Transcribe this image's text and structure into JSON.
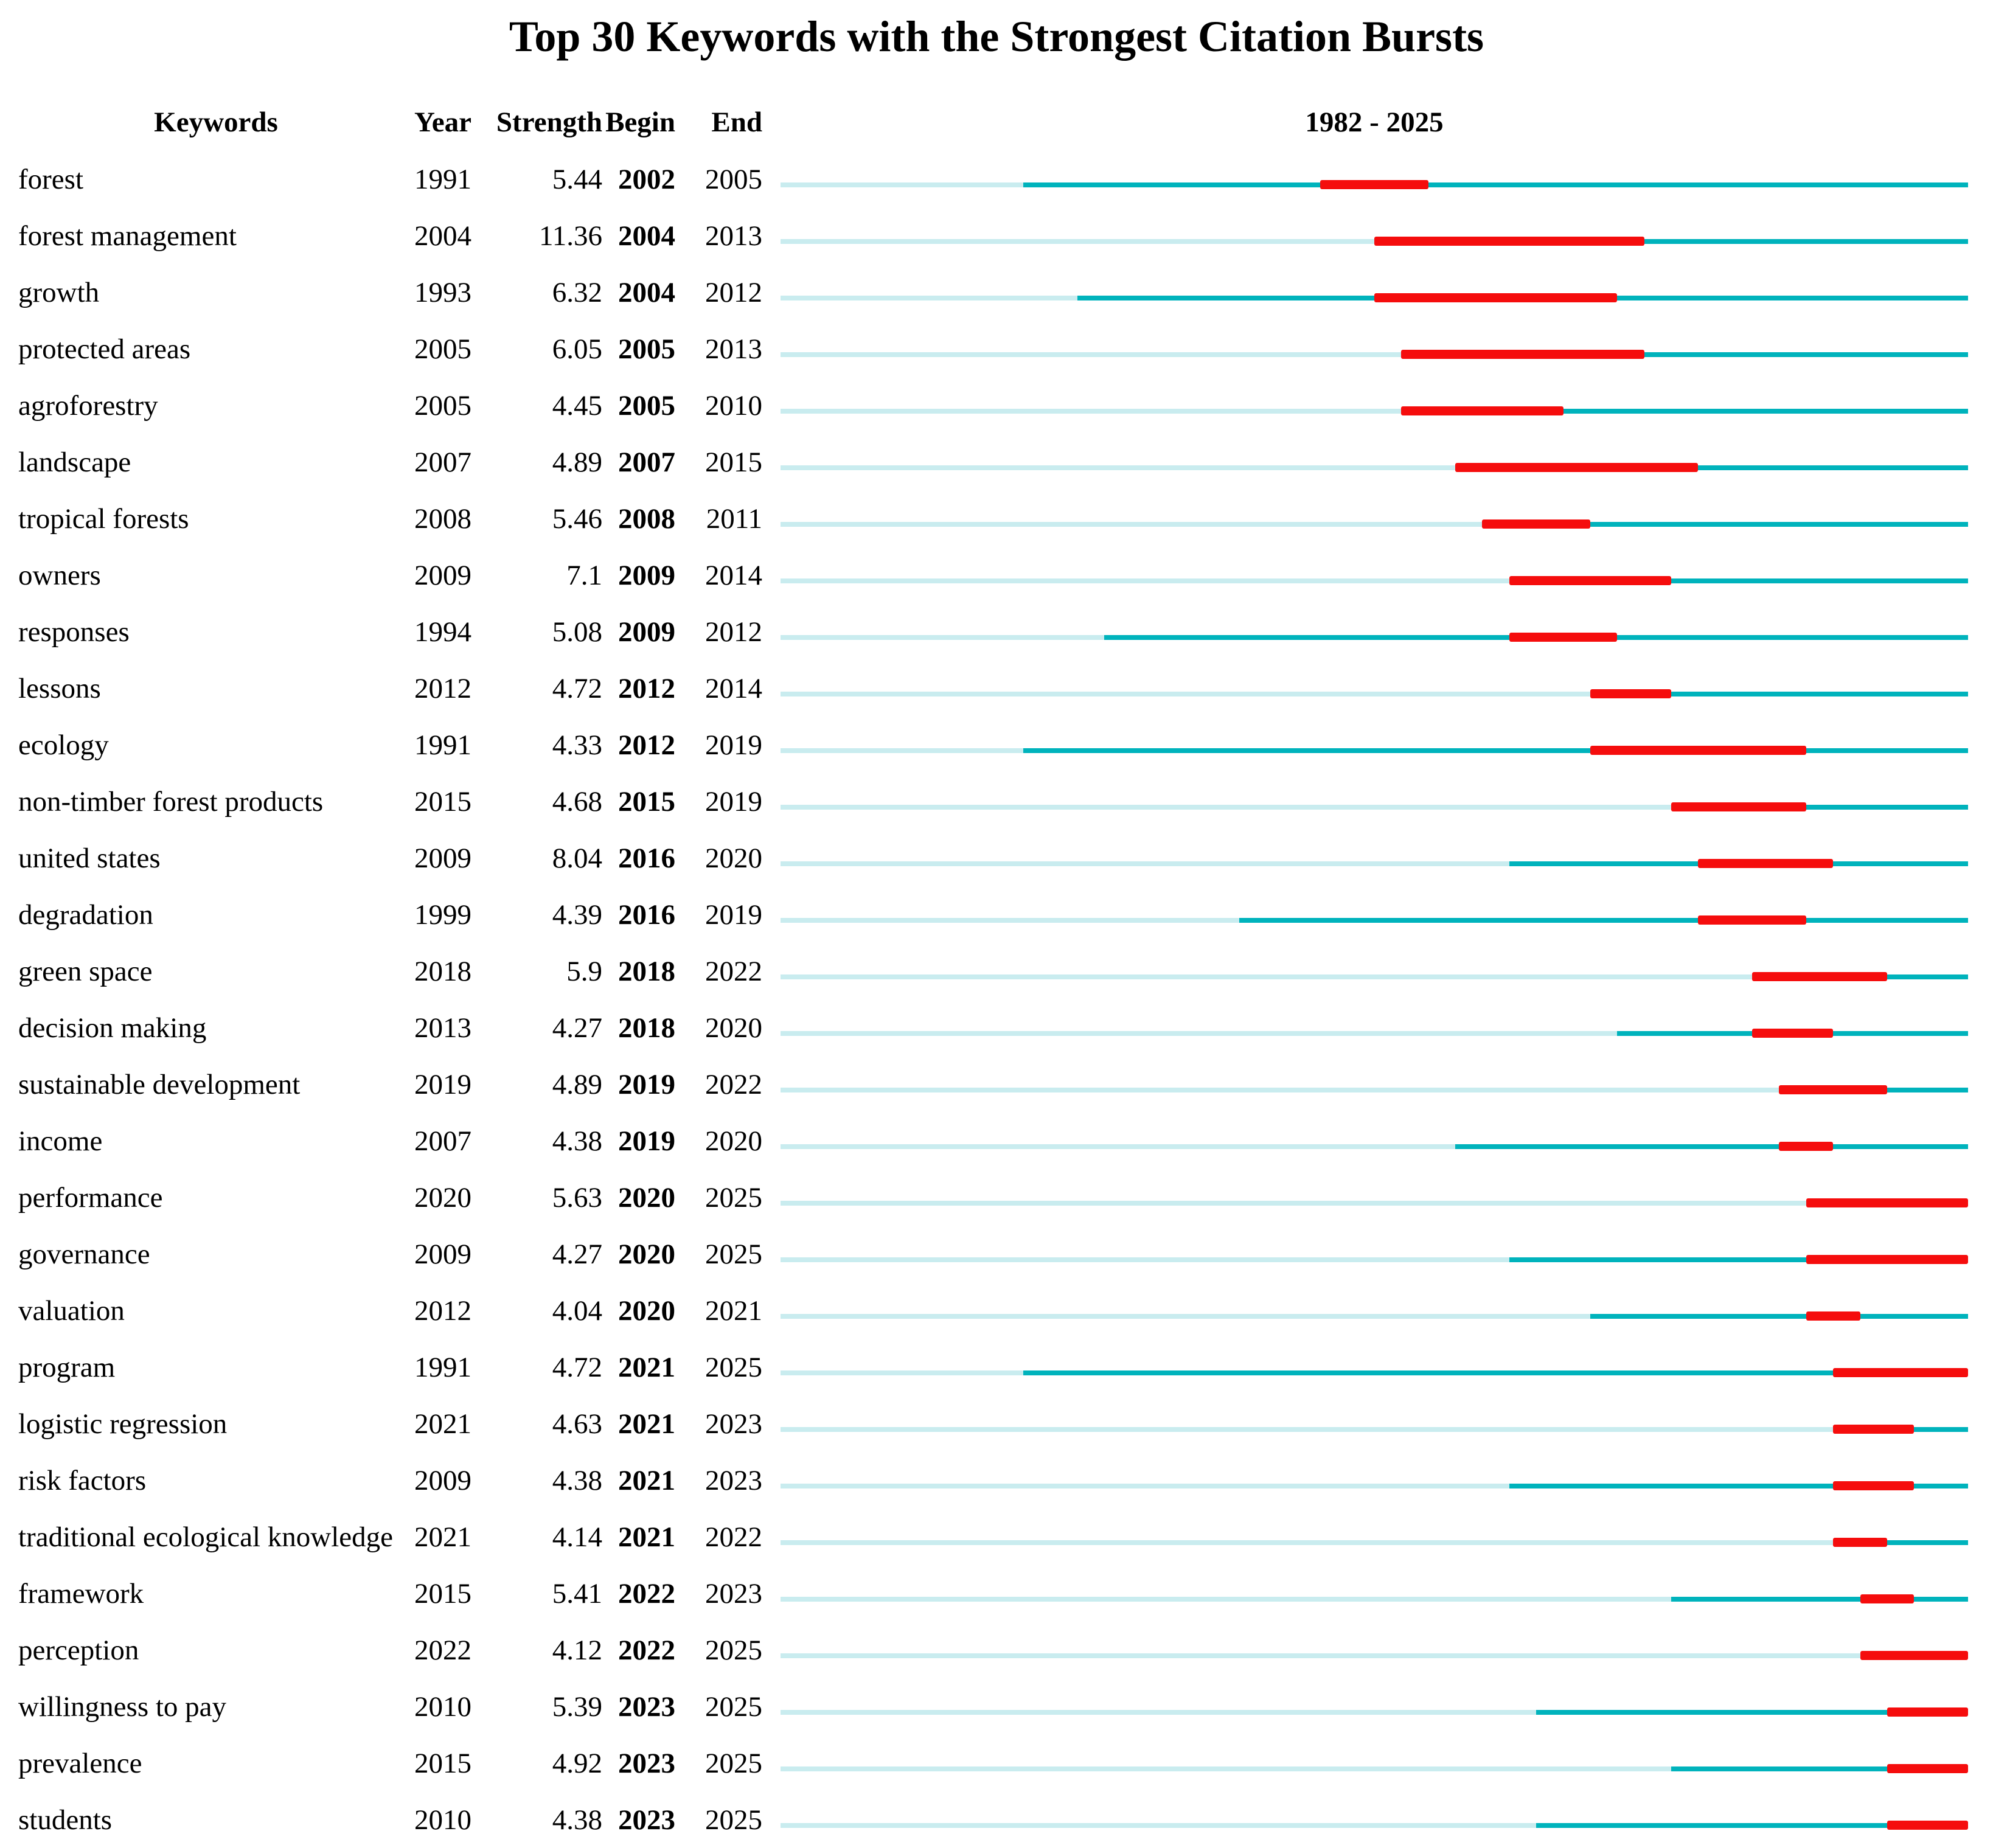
{
  "chart_data": {
    "type": "table",
    "title": "Top 30 Keywords with the Strongest Citation Bursts",
    "columns": [
      "Keywords",
      "Year",
      "Strength",
      "Begin",
      "End"
    ],
    "axis_label": "1982 - 2025",
    "axis_range": [
      1982,
      2025
    ],
    "legend": {
      "pale_meaning": "years before keyword first appears",
      "teal_meaning": "years keyword active",
      "red_meaning": "citation burst interval"
    },
    "colors": {
      "pale": "#c9ecef",
      "teal": "#00b3bc",
      "red": "#f50d0d"
    },
    "rows": [
      {
        "keyword": "forest",
        "year": 1991,
        "strength": "5.44",
        "begin": 2002,
        "end": 2005
      },
      {
        "keyword": "forest management",
        "year": 2004,
        "strength": "11.36",
        "begin": 2004,
        "end": 2013
      },
      {
        "keyword": "growth",
        "year": 1993,
        "strength": "6.32",
        "begin": 2004,
        "end": 2012
      },
      {
        "keyword": "protected areas",
        "year": 2005,
        "strength": "6.05",
        "begin": 2005,
        "end": 2013
      },
      {
        "keyword": "agroforestry",
        "year": 2005,
        "strength": "4.45",
        "begin": 2005,
        "end": 2010
      },
      {
        "keyword": "landscape",
        "year": 2007,
        "strength": "4.89",
        "begin": 2007,
        "end": 2015
      },
      {
        "keyword": "tropical forests",
        "year": 2008,
        "strength": "5.46",
        "begin": 2008,
        "end": 2011
      },
      {
        "keyword": "owners",
        "year": 2009,
        "strength": "7.1",
        "begin": 2009,
        "end": 2014
      },
      {
        "keyword": "responses",
        "year": 1994,
        "strength": "5.08",
        "begin": 2009,
        "end": 2012
      },
      {
        "keyword": "lessons",
        "year": 2012,
        "strength": "4.72",
        "begin": 2012,
        "end": 2014
      },
      {
        "keyword": "ecology",
        "year": 1991,
        "strength": "4.33",
        "begin": 2012,
        "end": 2019
      },
      {
        "keyword": "non-timber forest products",
        "year": 2015,
        "strength": "4.68",
        "begin": 2015,
        "end": 2019
      },
      {
        "keyword": "united states",
        "year": 2009,
        "strength": "8.04",
        "begin": 2016,
        "end": 2020
      },
      {
        "keyword": "degradation",
        "year": 1999,
        "strength": "4.39",
        "begin": 2016,
        "end": 2019
      },
      {
        "keyword": "green space",
        "year": 2018,
        "strength": "5.9",
        "begin": 2018,
        "end": 2022
      },
      {
        "keyword": "decision making",
        "year": 2013,
        "strength": "4.27",
        "begin": 2018,
        "end": 2020
      },
      {
        "keyword": "sustainable development",
        "year": 2019,
        "strength": "4.89",
        "begin": 2019,
        "end": 2022
      },
      {
        "keyword": "income",
        "year": 2007,
        "strength": "4.38",
        "begin": 2019,
        "end": 2020
      },
      {
        "keyword": "performance",
        "year": 2020,
        "strength": "5.63",
        "begin": 2020,
        "end": 2025
      },
      {
        "keyword": "governance",
        "year": 2009,
        "strength": "4.27",
        "begin": 2020,
        "end": 2025
      },
      {
        "keyword": "valuation",
        "year": 2012,
        "strength": "4.04",
        "begin": 2020,
        "end": 2021
      },
      {
        "keyword": "program",
        "year": 1991,
        "strength": "4.72",
        "begin": 2021,
        "end": 2025
      },
      {
        "keyword": "logistic regression",
        "year": 2021,
        "strength": "4.63",
        "begin": 2021,
        "end": 2023
      },
      {
        "keyword": "risk factors",
        "year": 2009,
        "strength": "4.38",
        "begin": 2021,
        "end": 2023
      },
      {
        "keyword": "traditional ecological knowledge",
        "year": 2021,
        "strength": "4.14",
        "begin": 2021,
        "end": 2022
      },
      {
        "keyword": "framework",
        "year": 2015,
        "strength": "5.41",
        "begin": 2022,
        "end": 2023
      },
      {
        "keyword": "perception",
        "year": 2022,
        "strength": "4.12",
        "begin": 2022,
        "end": 2025
      },
      {
        "keyword": "willingness to pay",
        "year": 2010,
        "strength": "5.39",
        "begin": 2023,
        "end": 2025
      },
      {
        "keyword": "prevalence",
        "year": 2015,
        "strength": "4.92",
        "begin": 2023,
        "end": 2025
      },
      {
        "keyword": "students",
        "year": 2010,
        "strength": "4.38",
        "begin": 2023,
        "end": 2025
      }
    ]
  }
}
